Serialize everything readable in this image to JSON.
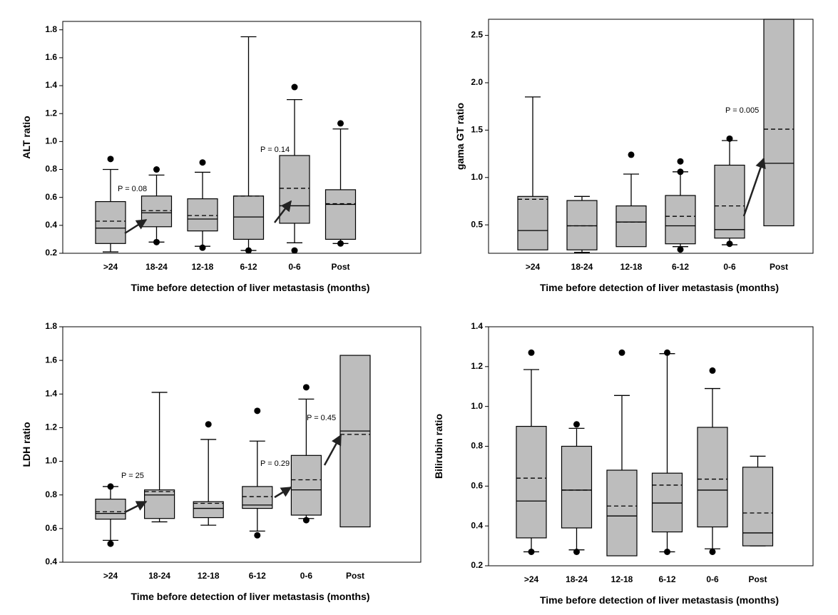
{
  "chart_data": [
    {
      "type": "box",
      "y_label": "ALT ratio",
      "x_label": "Time before detection of liver metastasis (months)",
      "categories": [
        ">24",
        "18-24",
        "12-18",
        "6-12",
        "0-6",
        "Post"
      ],
      "ylim": [
        0.2,
        1.86
      ],
      "yticks": [
        0.2,
        0.4,
        0.6,
        0.8,
        {
          "value": 1,
          "label": "1.0"
        },
        1.2,
        1.4,
        1.6,
        1.8
      ],
      "boxes": [
        {
          "whisker_low": 0.21,
          "q1": 0.27,
          "median": 0.38,
          "q3": 0.57,
          "whisker_high": 0.8,
          "mean": 0.43,
          "outliers": [
            0.875
          ]
        },
        {
          "whisker_low": 0.28,
          "q1": 0.39,
          "median": 0.49,
          "q3": 0.61,
          "whisker_high": 0.76,
          "mean": 0.505,
          "outliers": [
            0.8,
            0.28
          ]
        },
        {
          "whisker_low": 0.25,
          "q1": 0.36,
          "median": 0.445,
          "q3": 0.59,
          "whisker_high": 0.78,
          "mean": 0.47,
          "outliers": [
            0.85,
            0.24
          ]
        },
        {
          "whisker_low": 0.22,
          "q1": 0.3,
          "median": 0.46,
          "q3": 0.61,
          "whisker_high": 1.75,
          "mean": 0.61,
          "outliers": [
            0.22
          ]
        },
        {
          "whisker_low": 0.275,
          "q1": 0.415,
          "median": 0.54,
          "q3": 0.9,
          "whisker_high": 1.3,
          "mean": 0.665,
          "outliers": [
            1.39,
            0.22
          ]
        },
        {
          "whisker_low": 0.27,
          "q1": 0.3,
          "median": 0.55,
          "q3": 0.655,
          "whisker_high": 1.09,
          "mean": 0.555,
          "outliers": [
            1.13,
            0.27
          ]
        }
      ],
      "annotations": [
        "P = 0.08",
        "P = 0.14"
      ]
    },
    {
      "type": "box",
      "y_label": "gama GT ratio",
      "x_label": "Time before detection of liver metastasis (months)",
      "categories": [
        ">24",
        "18-24",
        "12-18",
        "6-12",
        "0-6",
        "Post"
      ],
      "ylim": [
        0.2,
        2.67
      ],
      "yticks": [
        0.5,
        {
          "value": 1,
          "label": "1.0"
        },
        1.5,
        {
          "value": 2,
          "label": "2.0"
        },
        2.5
      ],
      "boxes": [
        {
          "q1": 0.236,
          "median": 0.44,
          "q3": 0.8,
          "whisker_high": 1.85,
          "mean": 0.77,
          "outliers": []
        },
        {
          "whisker_low": 0.21,
          "q1": 0.236,
          "median": 0.49,
          "q3": 0.757,
          "whisker_high": 0.8,
          "mean": 0.49,
          "outliers": []
        },
        {
          "q1": 0.27,
          "median": 0.53,
          "q3": 0.7,
          "whisker_high": 1.036,
          "mean": 0.53,
          "outliers": [
            1.24
          ]
        },
        {
          "whisker_low": 0.27,
          "q1": 0.3,
          "median": 0.49,
          "q3": 0.81,
          "whisker_high": 1.06,
          "mean": 0.59,
          "outliers": [
            1.17,
            1.06,
            0.24
          ]
        },
        {
          "whisker_low": 0.29,
          "q1": 0.36,
          "median": 0.45,
          "q3": 1.13,
          "whisker_high": 1.39,
          "mean": 0.7,
          "outliers": [
            1.41,
            0.3
          ]
        },
        {
          "q1": 0.49,
          "median": 1.15,
          "q3": 2.67,
          "mean": 1.51,
          "outliers": []
        }
      ],
      "annotations": [
        "P = 0.005"
      ]
    },
    {
      "type": "box",
      "y_label": "LDH ratio",
      "x_label": "Time before detection of liver metastasis (months)",
      "categories": [
        ">24",
        "18-24",
        "12-18",
        "6-12",
        "0-6",
        "Post"
      ],
      "ylim": [
        0.4,
        1.8
      ],
      "yticks": [
        0.4,
        0.6,
        0.8,
        {
          "value": 1,
          "label": "1.0"
        },
        1.2,
        1.4,
        1.6,
        1.8
      ],
      "boxes": [
        {
          "whisker_low": 0.53,
          "q1": 0.656,
          "median": 0.69,
          "q3": 0.775,
          "whisker_high": 0.85,
          "mean": 0.7,
          "outliers": [
            0.85,
            0.51
          ]
        },
        {
          "whisker_low": 0.64,
          "q1": 0.66,
          "median": 0.8,
          "q3": 0.83,
          "whisker_high": 1.41,
          "mean": 0.82,
          "outliers": []
        },
        {
          "whisker_low": 0.62,
          "q1": 0.665,
          "median": 0.72,
          "q3": 0.76,
          "whisker_high": 1.13,
          "mean": 0.75,
          "outliers": [
            1.22
          ]
        },
        {
          "whisker_low": 0.585,
          "q1": 0.72,
          "median": 0.74,
          "q3": 0.85,
          "whisker_high": 1.12,
          "mean": 0.79,
          "outliers": [
            1.3,
            0.56
          ]
        },
        {
          "whisker_low": 0.66,
          "q1": 0.68,
          "median": 0.83,
          "q3": 1.035,
          "whisker_high": 1.37,
          "mean": 0.89,
          "outliers": [
            1.44,
            0.65
          ]
        },
        {
          "q1": 0.61,
          "median": 1.18,
          "q3": 1.63,
          "mean": 1.16,
          "outliers": []
        }
      ],
      "annotations": [
        "P = 25",
        "P = 0.29",
        "P = 0.45"
      ]
    },
    {
      "type": "box",
      "y_label": "Bilirubin ratio",
      "x_label": "Time before detection of liver metastasis (months)",
      "categories": [
        ">24",
        "18-24",
        "12-18",
        "6-12",
        "0-6",
        "Post"
      ],
      "ylim": [
        0.2,
        1.4
      ],
      "yticks": [
        0.2,
        0.4,
        0.6,
        0.8,
        {
          "value": 1,
          "label": "1.0"
        },
        1.2,
        1.4
      ],
      "boxes": [
        {
          "whisker_low": 0.27,
          "q1": 0.34,
          "median": 0.525,
          "q3": 0.9,
          "whisker_high": 1.185,
          "mean": 0.64,
          "outliers": [
            1.27,
            0.27
          ]
        },
        {
          "whisker_low": 0.28,
          "q1": 0.39,
          "median": 0.58,
          "q3": 0.8,
          "whisker_high": 0.89,
          "mean": 0.58,
          "outliers": [
            0.91,
            0.27
          ]
        },
        {
          "q1": 0.25,
          "median": 0.45,
          "q3": 0.68,
          "whisker_high": 1.055,
          "mean": 0.5,
          "outliers": [
            1.27
          ]
        },
        {
          "whisker_low": 0.27,
          "q1": 0.37,
          "median": 0.515,
          "q3": 0.665,
          "whisker_high": 1.265,
          "mean": 0.605,
          "outliers": [
            1.27,
            0.27
          ]
        },
        {
          "whisker_low": 0.285,
          "q1": 0.395,
          "median": 0.58,
          "q3": 0.895,
          "whisker_high": 1.09,
          "mean": 0.635,
          "outliers": [
            1.18,
            0.27
          ]
        },
        {
          "whisker_low": 0.3,
          "q1": 0.3,
          "median": 0.365,
          "q3": 0.695,
          "whisker_high": 0.75,
          "mean": 0.465,
          "outliers": []
        }
      ]
    }
  ]
}
